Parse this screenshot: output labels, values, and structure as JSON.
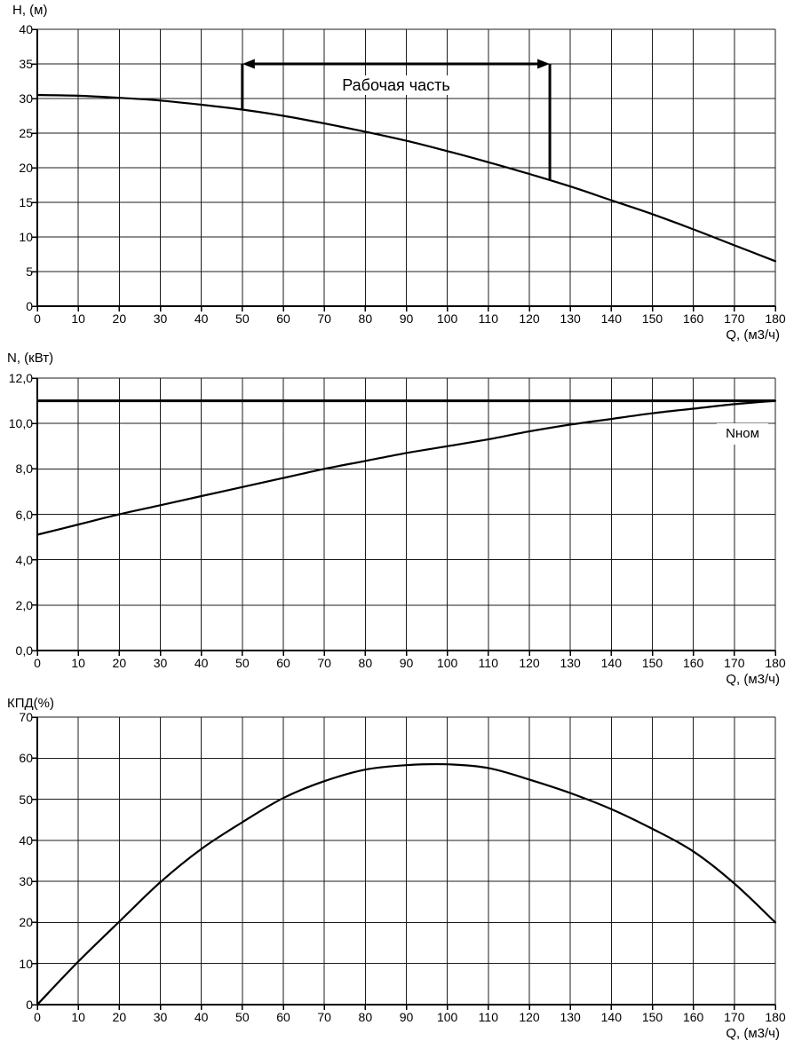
{
  "chart_data": [
    {
      "type": "line",
      "ylabel": "Н, (м)",
      "xlabel": "Q, (м3/ч)",
      "xlim": [
        0,
        180
      ],
      "ylim": [
        0,
        40
      ],
      "grid": true,
      "x_ticks": [
        0,
        10,
        20,
        30,
        40,
        50,
        60,
        70,
        80,
        90,
        100,
        110,
        120,
        130,
        140,
        150,
        160,
        170,
        180
      ],
      "y_ticks": [
        0,
        5,
        10,
        15,
        20,
        25,
        30,
        35,
        40
      ],
      "x": [
        0,
        10,
        20,
        30,
        40,
        50,
        60,
        70,
        80,
        90,
        100,
        110,
        120,
        130,
        140,
        150,
        160,
        170,
        180
      ],
      "series": [
        {
          "values": [
            30.5,
            30.4,
            30.1,
            29.7,
            29.1,
            28.4,
            27.5,
            26.4,
            25.2,
            23.9,
            22.4,
            20.8,
            19.1,
            17.3,
            15.3,
            13.3,
            11.1,
            8.8,
            6.5
          ]
        }
      ],
      "annotation": {
        "label": "Рабочая часть",
        "x_from": 50,
        "x_to": 125,
        "y_level": 35,
        "y_curve_from": 28.4,
        "y_curve_to": 18.2
      }
    },
    {
      "type": "line",
      "ylabel": "N, (кВт)",
      "xlabel": "Q, (м3/ч)",
      "xlim": [
        0,
        180
      ],
      "ylim": [
        0,
        12
      ],
      "grid": true,
      "x_ticks": [
        0,
        10,
        20,
        30,
        40,
        50,
        60,
        70,
        80,
        90,
        100,
        110,
        120,
        130,
        140,
        150,
        160,
        170,
        180
      ],
      "y_ticks": [
        0,
        2,
        4,
        6,
        8,
        10,
        12
      ],
      "y_tick_labels": [
        "0,0",
        "2,0",
        "4,0",
        "6,0",
        "8,0",
        "10,0",
        "12,0"
      ],
      "x": [
        0,
        10,
        20,
        30,
        40,
        50,
        60,
        70,
        80,
        90,
        100,
        110,
        120,
        130,
        140,
        150,
        160,
        170,
        180
      ],
      "series": [
        {
          "values": [
            5.1,
            5.55,
            6.0,
            6.4,
            6.8,
            7.2,
            7.6,
            8.0,
            8.35,
            8.7,
            9.0,
            9.3,
            9.65,
            9.95,
            10.2,
            10.45,
            10.65,
            10.85,
            11.0
          ]
        }
      ],
      "nominal_line": {
        "value": 11.0,
        "label": "Nном"
      }
    },
    {
      "type": "line",
      "ylabel": "КПД(%)",
      "xlabel": "Q, (м3/ч)",
      "xlim": [
        0,
        180
      ],
      "ylim": [
        0,
        70
      ],
      "grid": true,
      "x_ticks": [
        0,
        10,
        20,
        30,
        40,
        50,
        60,
        70,
        80,
        90,
        100,
        110,
        120,
        130,
        140,
        150,
        160,
        170,
        180
      ],
      "y_ticks": [
        0,
        10,
        20,
        30,
        40,
        50,
        60,
        70
      ],
      "x": [
        0,
        10,
        20,
        30,
        40,
        50,
        60,
        70,
        80,
        90,
        100,
        110,
        120,
        130,
        140,
        150,
        160,
        170,
        180
      ],
      "series": [
        {
          "values": [
            0,
            10.5,
            20.2,
            29.8,
            37.9,
            44.4,
            50.3,
            54.4,
            57.2,
            58.3,
            58.5,
            57.6,
            54.8,
            51.5,
            47.6,
            42.8,
            37.3,
            29.5,
            20.0
          ]
        }
      ]
    }
  ],
  "colors": {
    "line": "#000000",
    "grid": "#1c1c1c",
    "background": "#ffffff"
  }
}
